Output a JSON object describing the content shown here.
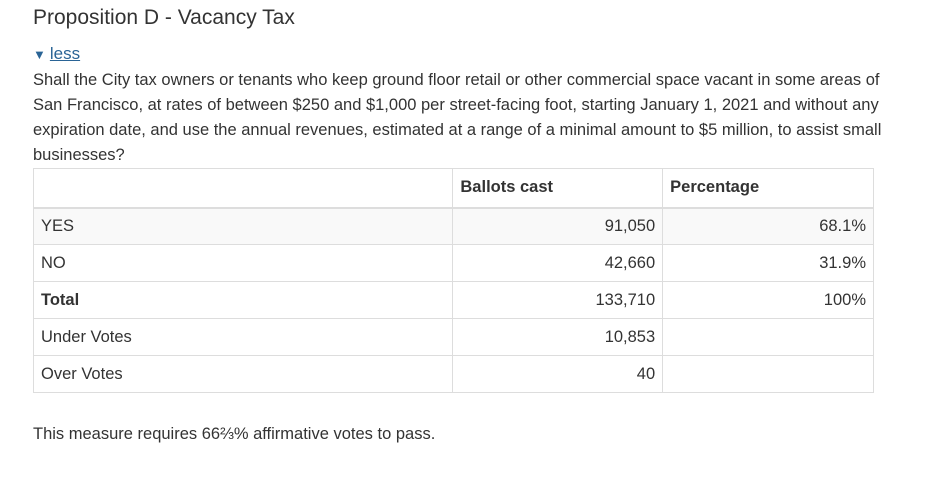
{
  "title": "Proposition D - Vacancy Tax",
  "toggle": {
    "arrow": "▼",
    "label": "less"
  },
  "question": "Shall the City tax owners or tenants who keep ground floor retail or other commercial space vacant in some areas of San Francisco, at rates of between $250 and $1,000 per street-facing foot, starting January 1, 2021 and without any expiration date, and use the annual revenues, estimated at a range of a minimal amount to $5 million, to assist small businesses?",
  "table": {
    "headers": [
      "",
      "Ballots cast",
      "Percentage"
    ],
    "rows": [
      {
        "label": "YES",
        "ballots": "91,050",
        "percentage": "68.1%"
      },
      {
        "label": "NO",
        "ballots": "42,660",
        "percentage": "31.9%"
      },
      {
        "label": "Total",
        "ballots": "133,710",
        "percentage": "100%"
      },
      {
        "label": "Under Votes",
        "ballots": "10,853",
        "percentage": ""
      },
      {
        "label": "Over Votes",
        "ballots": "40",
        "percentage": ""
      }
    ]
  },
  "note": "This measure requires 66⅔% affirmative votes to pass."
}
